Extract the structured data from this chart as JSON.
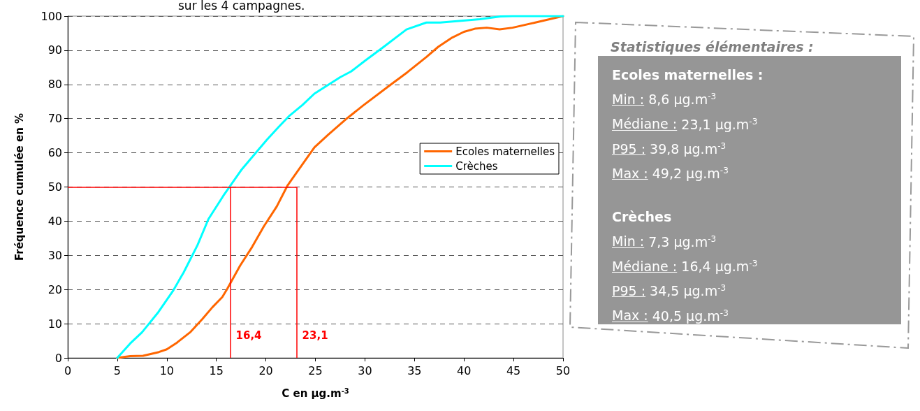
{
  "chart_data": [
    {
      "type": "line",
      "title": "sur les 4 campagnes.",
      "xlabel": "C en µg.m$^{-3}$",
      "ylabel": "Fréquence cumulée en %",
      "xlim": [
        0,
        50
      ],
      "xticks": [
        0,
        5,
        10,
        15,
        20,
        25,
        30,
        35,
        40,
        45,
        50
      ],
      "ylim": [
        0,
        100
      ],
      "yticks": [
        0,
        10,
        20,
        30,
        40,
        50,
        60,
        70,
        80,
        90,
        100
      ],
      "grid": "y",
      "legend": "right",
      "marker": "none",
      "line_style": "solid",
      "series": [
        {
          "name": "Ecoles maternelles",
          "color": "#ff6600",
          "x": [
            5,
            6.3,
            7.6,
            9.2,
            10,
            11,
            12.4,
            13.6,
            14.6,
            15.6,
            16.1,
            17.4,
            18.6,
            19.8,
            21.1,
            22.2,
            24.9,
            26.3,
            28.2,
            29.8,
            32.4,
            34.3,
            36.2,
            37.4,
            38.8,
            40,
            41.1,
            42.3,
            43.6,
            44.9,
            47.2,
            50
          ],
          "values": [
            0,
            0.5,
            0.6,
            1.7,
            2.5,
            4.4,
            7.6,
            11.4,
            14.8,
            17.8,
            20.2,
            27,
            32.4,
            38.5,
            44.3,
            50.5,
            61.6,
            65.3,
            70.1,
            73.8,
            79.5,
            83.6,
            88,
            91,
            93.7,
            95.4,
            96.3,
            96.6,
            96.1,
            96.6,
            98.1,
            100
          ]
        },
        {
          "name": "Crèches",
          "color": "#00ffff",
          "x": [
            5,
            6.3,
            7.5,
            9.15,
            10.6,
            11.7,
            13.1,
            14.2,
            15.7,
            17.5,
            18.9,
            20.1,
            21.3,
            22.4,
            23.7,
            24.9,
            27.5,
            28.6,
            30,
            31.9,
            34.2,
            36.2,
            37.6,
            39.7,
            41.6,
            43.7,
            44.9,
            50
          ],
          "values": [
            0,
            4.2,
            7.5,
            13.4,
            19.5,
            25,
            33,
            40.6,
            47.4,
            54.9,
            59.7,
            63.8,
            67.6,
            70.9,
            74,
            77.3,
            82.1,
            83.8,
            86.9,
            91,
            96.1,
            98.1,
            98.1,
            98.6,
            99.1,
            99.9,
            100,
            100
          ]
        }
      ],
      "ref_lines": [
        {
          "axis": "y",
          "value": 50,
          "color": "#ff0000"
        },
        {
          "axis": "x",
          "value": 16.4,
          "label": "16,4",
          "color": "#ff0000"
        },
        {
          "axis": "x",
          "value": 23.1,
          "label": "23,1",
          "color": "#ff0000"
        }
      ]
    },
    {
      "type": "other",
      "title": "Statistiques élémentaires :",
      "annotations": [
        "Ecoles maternelles :",
        "Min : 8,6 µg.m$^{-3}$",
        "Médiane : 23,1 µg.m$^{-3}$",
        "P95 : 39,8 µg.m$^{-3}$",
        "Max : 49,2 µg.m$^{-3}$",
        "Crèches",
        "Min : 7,3 µg.m$^{-3}$",
        "Médiane : 16,4 µg.m$^{-3}$",
        "P95 : 34,5 µg.m$^{-3}$",
        "Max : 40,5 µg.m$^{-3}$"
      ]
    }
  ]
}
